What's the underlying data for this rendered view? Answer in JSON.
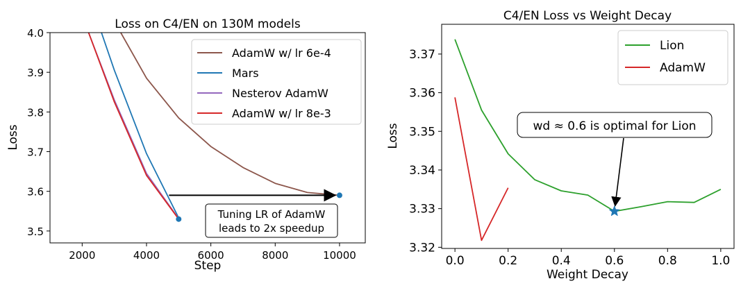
{
  "chart_data": [
    {
      "type": "line",
      "title": "Loss on C4/EN on 130M models",
      "xlabel": "Step",
      "ylabel": "Loss",
      "xlim": [
        1000,
        10800
      ],
      "ylim": [
        3.47,
        4.0
      ],
      "xticks": [
        2000,
        4000,
        6000,
        8000,
        10000
      ],
      "yticks": [
        3.5,
        3.6,
        3.7,
        3.8,
        3.9,
        4.0
      ],
      "grid": false,
      "legend_position": "top-right",
      "series": [
        {
          "name": "AdamW w/ lr 6e-4",
          "color": "#8c564b",
          "points": [
            [
              3200,
              4.0
            ],
            [
              4000,
              3.885
            ],
            [
              5000,
              3.785
            ],
            [
              6000,
              3.713
            ],
            [
              7000,
              3.66
            ],
            [
              8000,
              3.62
            ],
            [
              9000,
              3.597
            ],
            [
              10000,
              3.59
            ]
          ]
        },
        {
          "name": "Mars",
          "color": "#1f77b4",
          "points": [
            [
              2600,
              4.0
            ],
            [
              3000,
              3.905
            ],
            [
              4000,
              3.695
            ],
            [
              5000,
              3.533
            ]
          ]
        },
        {
          "name": "Nesterov AdamW",
          "color": "#9467bd",
          "points": [
            [
              2200,
              4.0
            ],
            [
              3000,
              3.83
            ],
            [
              4000,
              3.645
            ],
            [
              5000,
              3.531
            ]
          ]
        },
        {
          "name": "AdamW w/ lr 8e-3",
          "color": "#d62728",
          "points": [
            [
              2200,
              4.0
            ],
            [
              3000,
              3.825
            ],
            [
              4000,
              3.64
            ],
            [
              5000,
              3.53
            ]
          ]
        }
      ],
      "markers": [
        [
          5000,
          3.53
        ],
        [
          10000,
          3.59
        ]
      ],
      "arrow": {
        "from": [
          4700,
          3.59
        ],
        "to": [
          9950,
          3.59
        ]
      },
      "annotation": {
        "lines": [
          "Tuning LR of AdamW",
          "leads to 2x speedup"
        ],
        "at": [
          7500,
          3.513
        ]
      }
    },
    {
      "type": "line",
      "title": "C4/EN Loss vs Weight Decay",
      "xlabel": "Weight Decay",
      "ylabel": "Loss",
      "xlim": [
        -0.05,
        1.05
      ],
      "ylim": [
        3.3197,
        3.3777
      ],
      "xticks": [
        0.0,
        0.2,
        0.4,
        0.6,
        0.8,
        1.0
      ],
      "yticks": [
        3.32,
        3.33,
        3.34,
        3.35,
        3.36,
        3.37
      ],
      "grid": false,
      "legend_position": "top-right",
      "series": [
        {
          "name": "Lion",
          "color": "#2ca02c",
          "points": [
            [
              0.0,
              3.3738
            ],
            [
              0.1,
              3.3555
            ],
            [
              0.2,
              3.3442
            ],
            [
              0.3,
              3.3375
            ],
            [
              0.4,
              3.3346
            ],
            [
              0.5,
              3.3335
            ],
            [
              0.6,
              3.3293
            ],
            [
              0.7,
              3.3305
            ],
            [
              0.8,
              3.3318
            ],
            [
              0.9,
              3.3316
            ],
            [
              1.0,
              3.335
            ]
          ]
        },
        {
          "name": "AdamW",
          "color": "#d62728",
          "points": [
            [
              0.0,
              3.3588
            ],
            [
              0.1,
              3.3218
            ],
            [
              0.2,
              3.3354
            ]
          ]
        }
      ],
      "star_marker": [
        0.6,
        3.3293
      ],
      "annotation": {
        "text": "wd ≈ 0.6 is optimal for Lion",
        "arrow_to": [
          0.6,
          3.3293
        ]
      }
    }
  ]
}
